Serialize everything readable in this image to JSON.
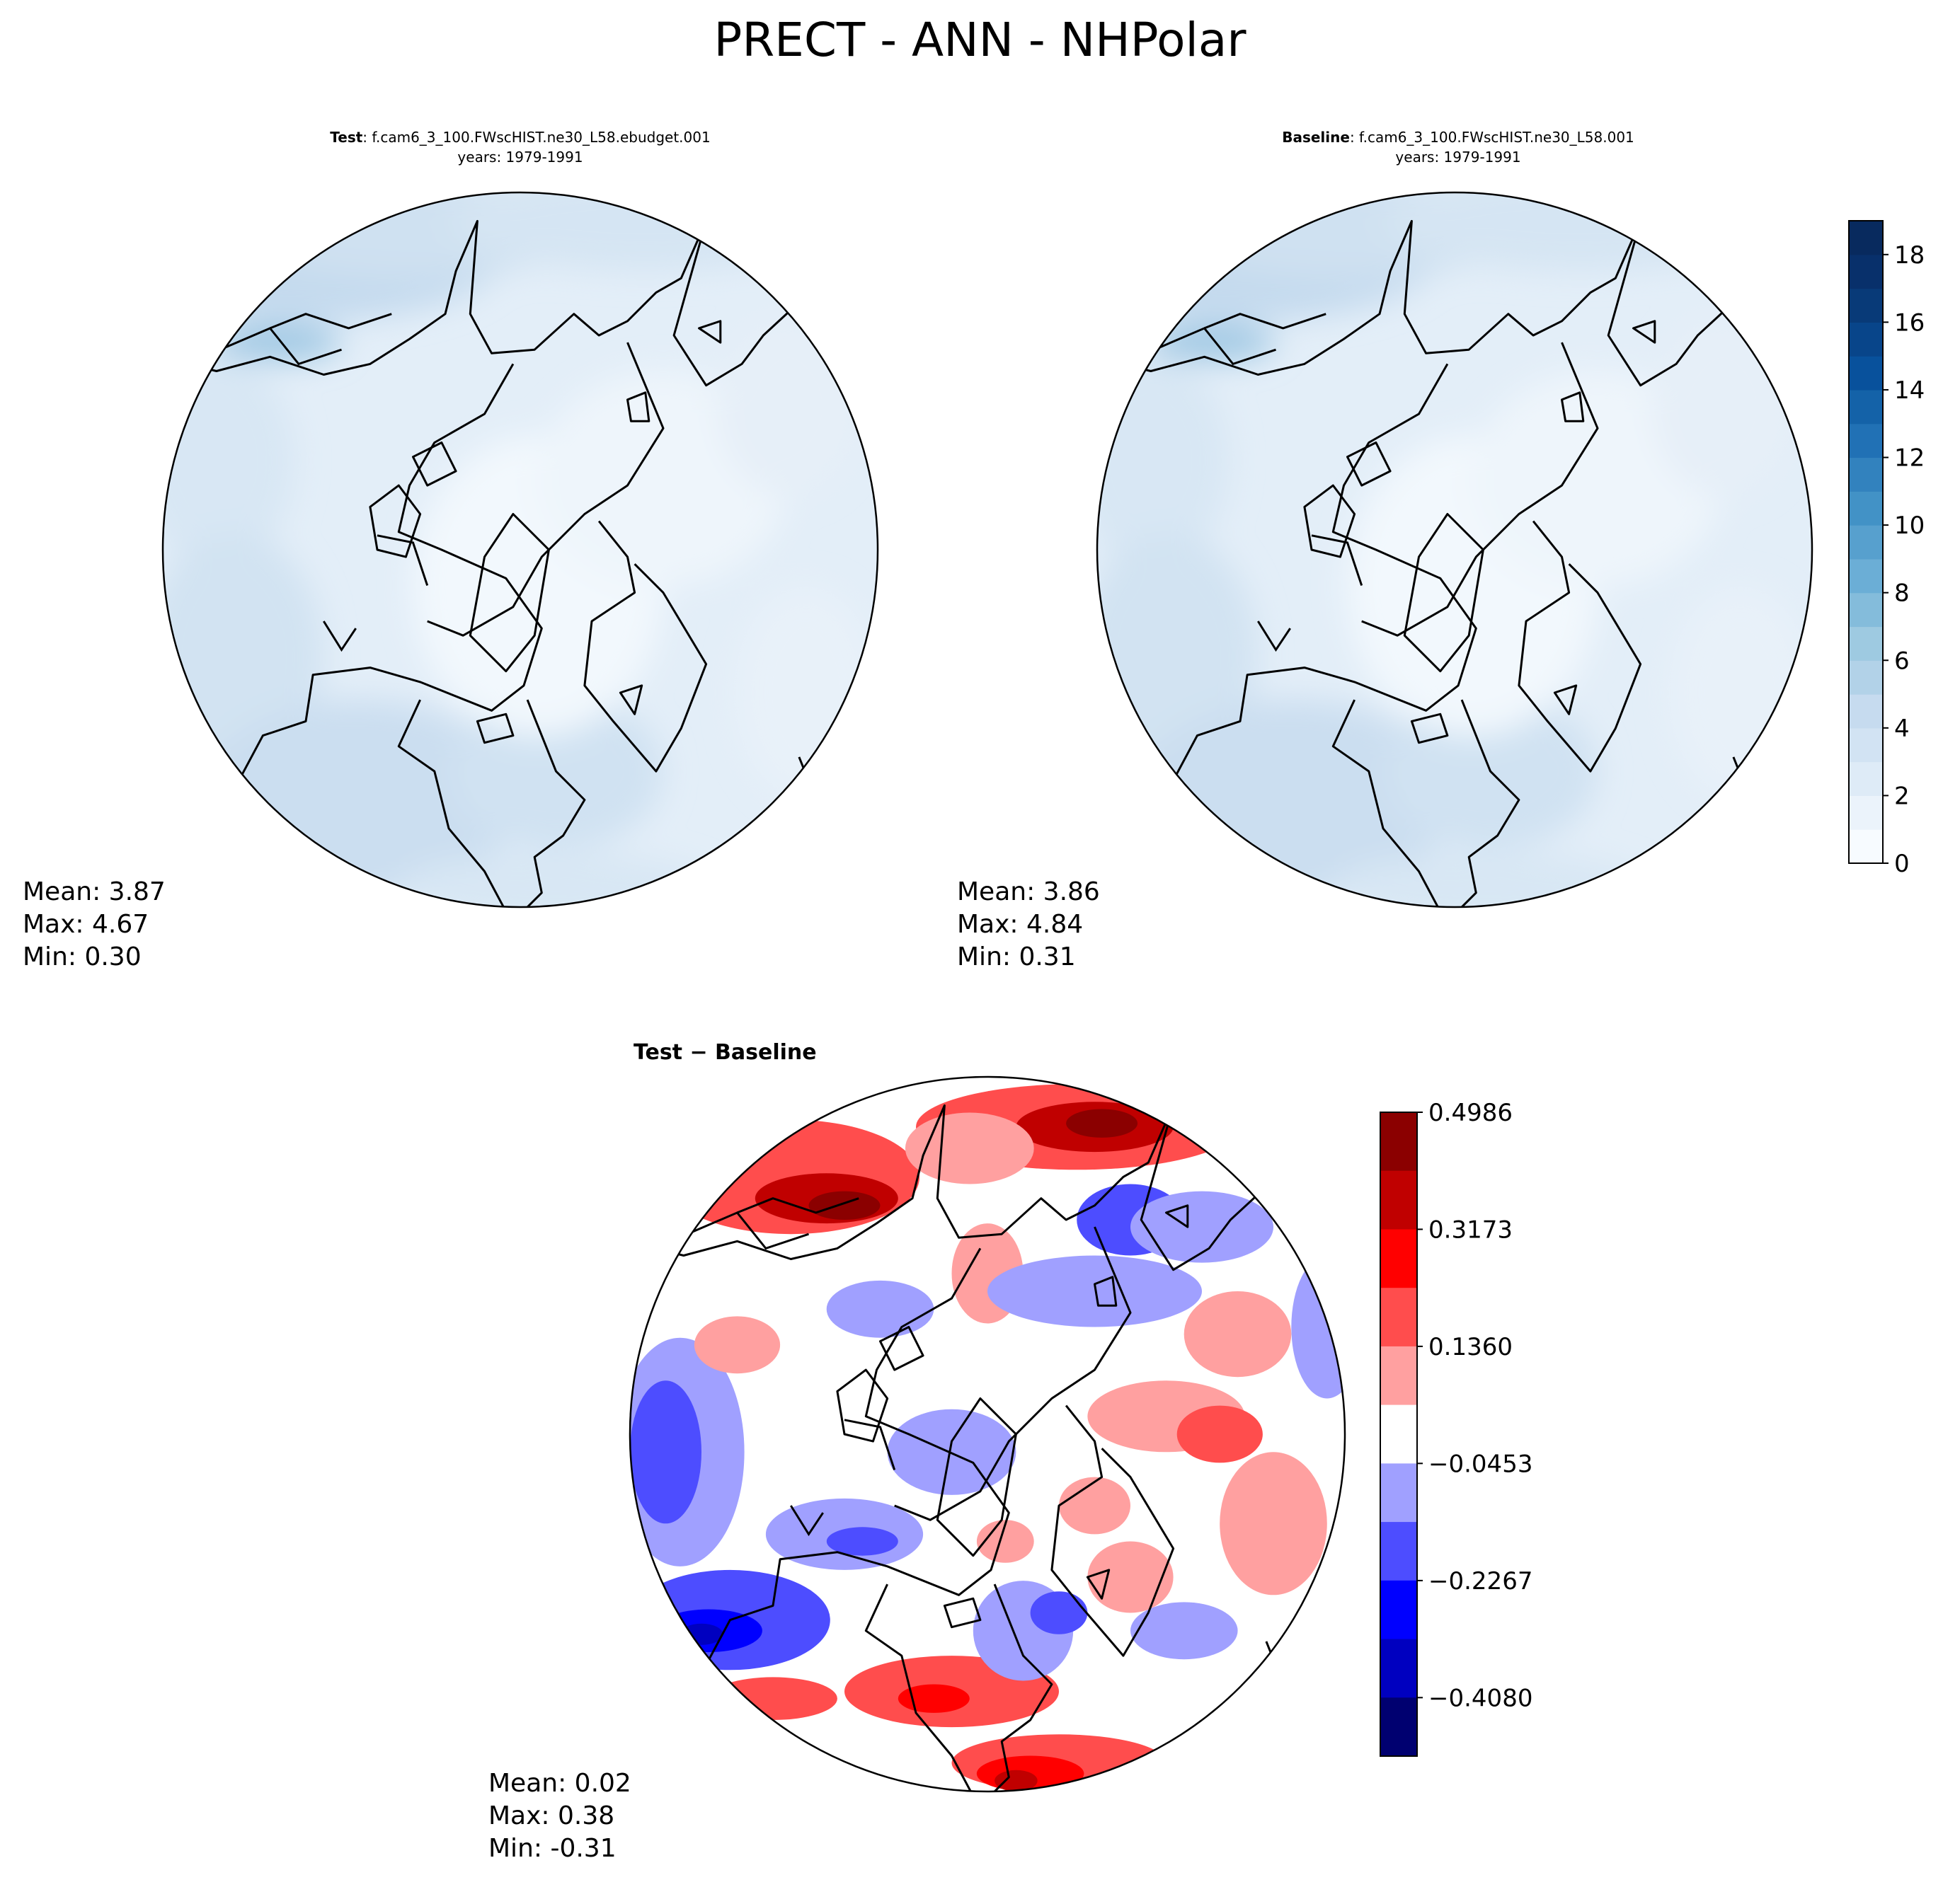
{
  "figure": {
    "title": "PRECT - ANN - NHPolar"
  },
  "panels": [
    {
      "id": "test",
      "title_bold": "Test",
      "title_rest": ": f.cam6_3_100.FWscHIST.ne30_L58.ebudget.001",
      "years": "years: 1979-1991",
      "stats": {
        "mean": "Mean:  3.87",
        "max": "Max:  4.67",
        "min": "Min:  0.30"
      }
    },
    {
      "id": "baseline",
      "title_bold": "Baseline",
      "title_rest": ": f.cam6_3_100.FWscHIST.ne30_L58.001",
      "years": "years: 1979-1991",
      "stats": {
        "mean": "Mean:  3.86",
        "max": "Max:  4.84",
        "min": "Min:  0.31"
      }
    },
    {
      "id": "diff",
      "title": "Test − Baseline",
      "stats": {
        "mean": "Mean:  0.02",
        "max": "Max:  0.38",
        "min": "Min: -0.31"
      }
    }
  ],
  "chart_data": [
    {
      "type": "heatmap",
      "title": "Test : f.cam6_3_100.FWscHIST.ne30_L58.ebudget.001",
      "subtitle": "years: 1979-1991",
      "projection": "north polar stereographic",
      "colormap": "Blues",
      "stats": {
        "mean": 3.87,
        "max": 4.67,
        "min": 0.3
      }
    },
    {
      "type": "heatmap",
      "title": "Baseline : f.cam6_3_100.FWscHIST.ne30_L58.001",
      "subtitle": "years: 1979-1991",
      "projection": "north polar stereographic",
      "colormap": "Blues",
      "stats": {
        "mean": 3.86,
        "max": 4.84,
        "min": 0.31
      },
      "colorbar": {
        "range": [
          0,
          19
        ],
        "levels": 19,
        "ticks": [
          "0",
          "2",
          "4",
          "6",
          "8",
          "10",
          "12",
          "14",
          "16",
          "18"
        ],
        "colors": [
          "#f7fbff",
          "#ebf3fb",
          "#deebf7",
          "#d2e3f3",
          "#c6dbef",
          "#b2d2e8",
          "#9ecae1",
          "#84bcdb",
          "#6baed6",
          "#57a0ce",
          "#4292c6",
          "#3282be",
          "#2171b5",
          "#1462a8",
          "#08519c",
          "#08458a",
          "#083a78",
          "#08306b",
          "#082a5e"
        ]
      }
    },
    {
      "type": "heatmap",
      "title": "Test − Baseline",
      "projection": "north polar stereographic",
      "colormap": "seismic",
      "stats": {
        "mean": 0.02,
        "max": 0.38,
        "min": -0.31
      },
      "colorbar": {
        "range": [
          -0.4986,
          0.4986
        ],
        "ticks": [
          "0.4986",
          "0.3173",
          "0.1360",
          "−0.0453",
          "−0.2267",
          "−0.4080"
        ],
        "tick_values": [
          0.4986,
          0.3173,
          0.136,
          -0.0453,
          -0.2267,
          -0.408
        ],
        "colors_top_to_bottom": [
          "#8b0000",
          "#c00000",
          "#ff0000",
          "#ff4d4d",
          "#ffa0a0",
          "#ffffff",
          "#a0a0ff",
          "#4d4dff",
          "#0000ff",
          "#0000c0",
          "#000070"
        ]
      }
    }
  ]
}
